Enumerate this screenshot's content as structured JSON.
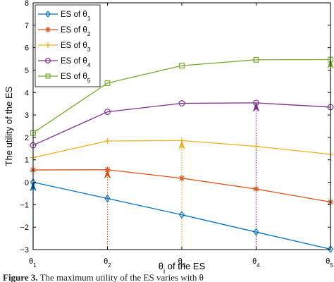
{
  "chart_data": {
    "type": "line",
    "xlabel": "θi of the ES",
    "ylabel": "The utility of the ES",
    "categories": [
      "θ1",
      "θ2",
      "θ3",
      "θ4",
      "θ5"
    ],
    "ylim": [
      -3,
      8
    ],
    "yticks": [
      -3,
      -2,
      -1,
      0,
      1,
      2,
      3,
      4,
      5,
      6,
      7,
      8
    ],
    "grid": false,
    "legend_position": "top-left",
    "series": [
      {
        "name": "ES of θ1",
        "color": "#0072BD",
        "marker": "diamond",
        "values": [
          0.0,
          -0.72,
          -1.45,
          -2.22,
          -2.98
        ]
      },
      {
        "name": "ES of θ2",
        "color": "#D95319",
        "marker": "asterisk",
        "values": [
          0.55,
          0.56,
          0.18,
          -0.3,
          -0.88
        ]
      },
      {
        "name": "ES of θ3",
        "color": "#EDB120",
        "marker": "plus",
        "values": [
          1.1,
          1.84,
          1.86,
          1.6,
          1.25
        ]
      },
      {
        "name": "ES of θ4",
        "color": "#7E2F8E",
        "marker": "circle",
        "values": [
          1.65,
          3.14,
          3.52,
          3.54,
          3.35
        ]
      },
      {
        "name": "ES of θ5",
        "color": "#77AC30",
        "marker": "square",
        "values": [
          2.2,
          4.42,
          5.2,
          5.46,
          5.47
        ]
      }
    ],
    "annotations": {
      "description": "dotted vertical arrows from the bottom axis up to each type's own-contract point",
      "targets": [
        {
          "category": "θ1",
          "series_index": 0
        },
        {
          "category": "θ2",
          "series_index": 1
        },
        {
          "category": "θ3",
          "series_index": 2
        },
        {
          "category": "θ4",
          "series_index": 3
        },
        {
          "category": "θ5",
          "series_index": 4
        }
      ]
    }
  },
  "caption": {
    "label": "Figure 3.",
    "text": "The maximum utility of the ES varies with θ"
  }
}
